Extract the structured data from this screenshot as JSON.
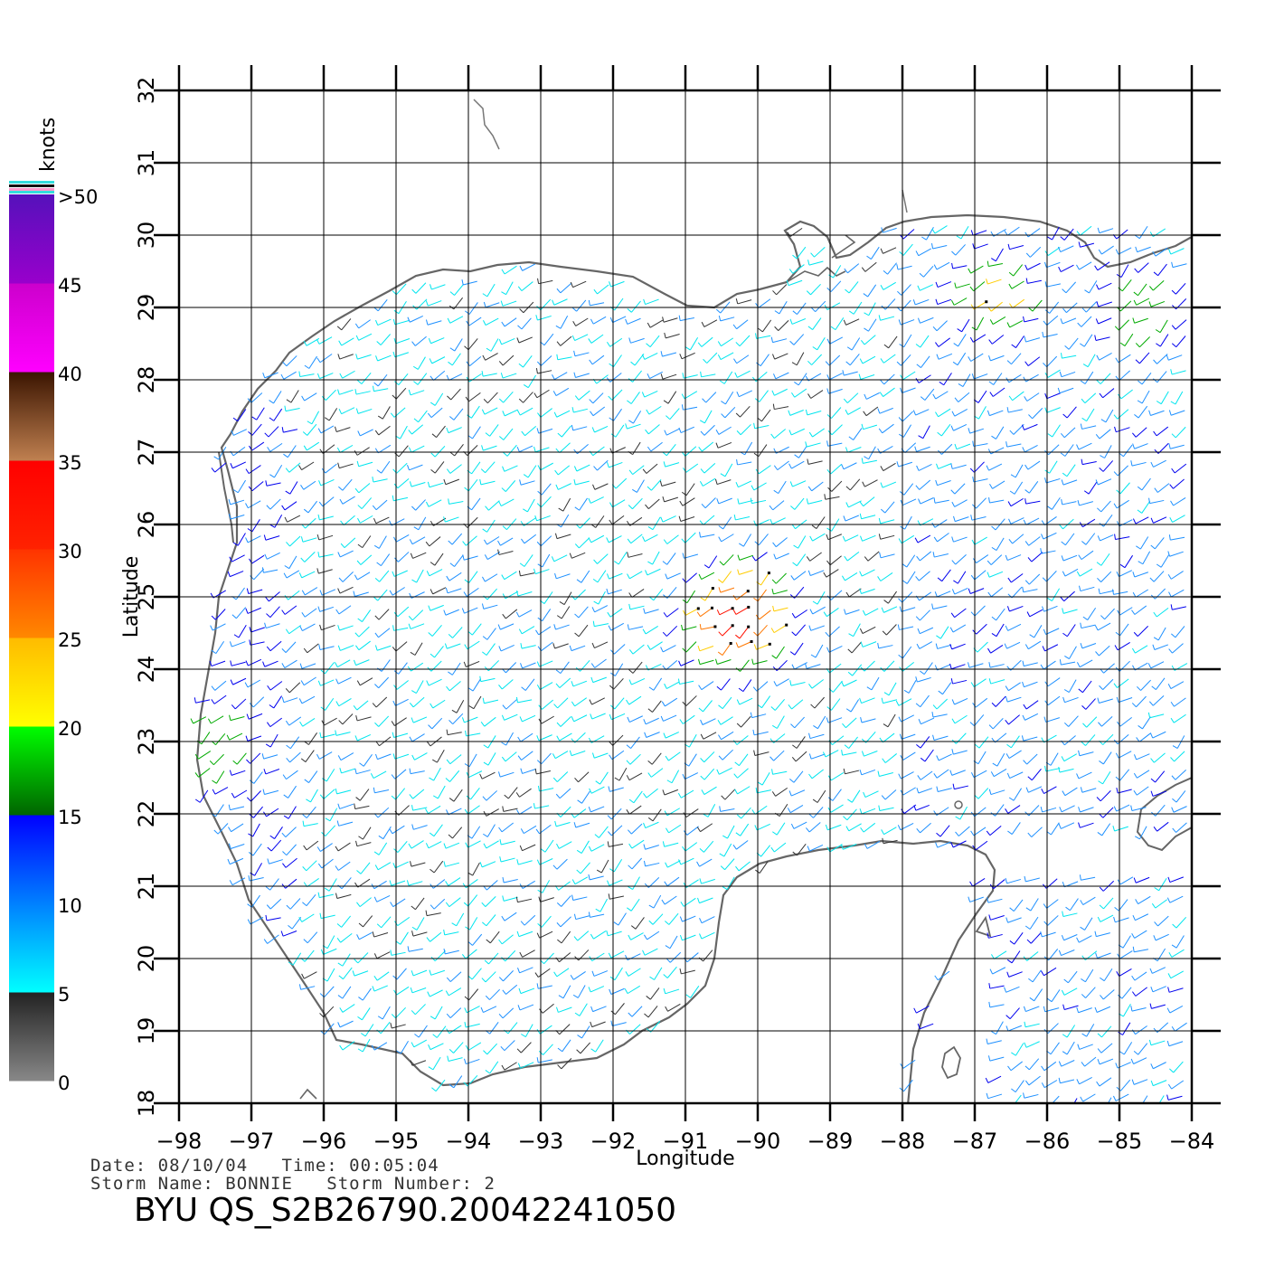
{
  "legend": {
    "unit": "knots",
    "bands": [
      {
        "label": "0",
        "from": 0,
        "to": 5,
        "colors": [
          "#888888",
          "#222222"
        ]
      },
      {
        "label": "5",
        "from": 5,
        "to": 10,
        "colors": [
          "#00ffff",
          "#0080ff"
        ]
      },
      {
        "label": "10",
        "from": 10,
        "to": 15,
        "colors": [
          "#0080ff",
          "#0000ff"
        ]
      },
      {
        "label": "15",
        "from": 15,
        "to": 20,
        "colors": [
          "#006400",
          "#00ff00"
        ]
      },
      {
        "label": "20",
        "from": 20,
        "to": 25,
        "colors": [
          "#ffff00",
          "#ffbb00"
        ]
      },
      {
        "label": "25",
        "from": 25,
        "to": 30,
        "colors": [
          "#ff8800",
          "#ff3300"
        ]
      },
      {
        "label": "30",
        "from": 30,
        "to": 35,
        "colors": [
          "#ff2200",
          "#ff0000"
        ]
      },
      {
        "label": "35",
        "from": 35,
        "to": 40,
        "colors": [
          "#c08050",
          "#3a1400"
        ]
      },
      {
        "label": "40",
        "from": 40,
        "to": 45,
        "colors": [
          "#ff00ff",
          "#cc00cc"
        ]
      },
      {
        "label": "45",
        "from": 45,
        "to": 50,
        "colors": [
          "#9900cc",
          "#5511bb"
        ]
      },
      {
        "label": ">50",
        "from": 50,
        "to": 55,
        "colors": [
          "#5511bb",
          "#5511bb"
        ]
      }
    ]
  },
  "chart_data": {
    "type": "map",
    "xlabel": "Longitude",
    "ylabel": "Latitude",
    "xlim": [
      -98,
      -84
    ],
    "ylim": [
      18,
      32
    ],
    "x_ticks": [
      "-98",
      "-97",
      "-96",
      "-95",
      "-94",
      "-93",
      "-92",
      "-91",
      "-90",
      "-89",
      "-88",
      "-87",
      "-86",
      "-85",
      "-84"
    ],
    "y_ticks": [
      "18",
      "19",
      "20",
      "21",
      "22",
      "23",
      "24",
      "25",
      "26",
      "27",
      "28",
      "29",
      "30",
      "31",
      "32"
    ],
    "grid": true,
    "wind_maxima": [
      {
        "lon": -90.2,
        "lat": 24.8,
        "speed_knots": 32
      },
      {
        "lon": -86.6,
        "lat": 29.2,
        "speed_knots": 22
      },
      {
        "lon": -84.6,
        "lat": 29.0,
        "speed_knots": 20
      },
      {
        "lon": -97.4,
        "lat": 23.0,
        "speed_knots": 20
      }
    ]
  },
  "info": {
    "date_label": "Date:",
    "date": "08/10/04",
    "time_label": "Time:",
    "time": "00:05:04",
    "storm_name_label": "Storm Name:",
    "storm_name": "BONNIE",
    "storm_number_label": "Storm Number:",
    "storm_number": "2"
  },
  "product": {
    "prefix": "BYU",
    "id": "QS_S2B26790.20042241050"
  }
}
